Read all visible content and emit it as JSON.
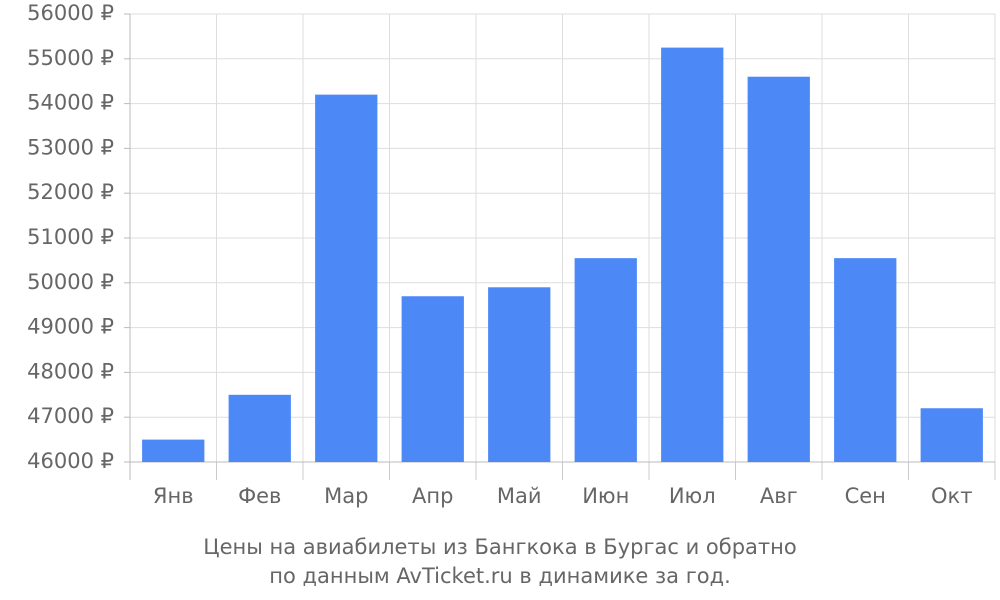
{
  "chart_data": {
    "type": "bar",
    "caption": [
      "Цены на авиабилеты из Бангкока в Бургас и обратно",
      "по данным AvTicket.ru в динамике за год."
    ],
    "categories": [
      "Янв",
      "Фев",
      "Мар",
      "Апр",
      "Май",
      "Июн",
      "Июл",
      "Авг",
      "Сен",
      "Окт"
    ],
    "values": [
      46500,
      47500,
      54200,
      49700,
      49900,
      50550,
      55250,
      54600,
      50550,
      47200
    ],
    "color": "#4d88f7",
    "ylim": [
      46000,
      56000
    ],
    "yticks": [
      {
        "value": 46000,
        "label": "46000 ₽"
      },
      {
        "value": 47000,
        "label": "47000 ₽"
      },
      {
        "value": 48000,
        "label": "48000 ₽"
      },
      {
        "value": 49000,
        "label": "49000 ₽"
      },
      {
        "value": 50000,
        "label": "50000 ₽"
      },
      {
        "value": 51000,
        "label": "51000 ₽"
      },
      {
        "value": 52000,
        "label": "52000 ₽"
      },
      {
        "value": 53000,
        "label": "53000 ₽"
      },
      {
        "value": 54000,
        "label": "54000 ₽"
      },
      {
        "value": 55000,
        "label": "55000 ₽"
      },
      {
        "value": 56000,
        "label": "56000 ₽"
      }
    ],
    "grid": true
  }
}
